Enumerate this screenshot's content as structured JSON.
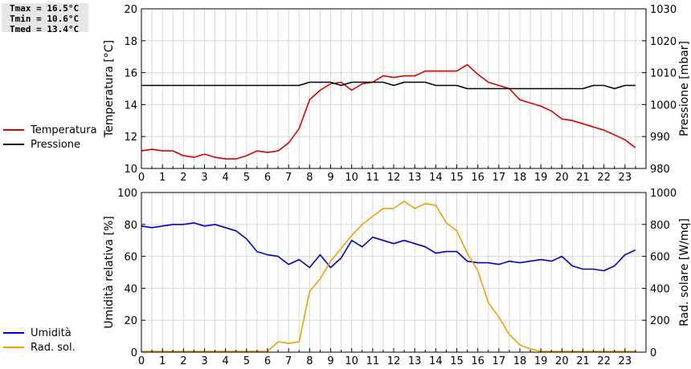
{
  "stats": {
    "tmax": "Tmax = 16.5°C",
    "tmin": "Tmin = 10.6°C",
    "tmed": "Tmed = 13.4°C"
  },
  "legend_top": [
    {
      "label": "Temperatura",
      "color": "#dd0000"
    },
    {
      "label": "Pressione",
      "color": "#000000"
    }
  ],
  "legend_bottom": [
    {
      "label": "Umidità",
      "color": "#0000cc"
    },
    {
      "label": "Rad. sol.",
      "color": "#f0a000"
    }
  ],
  "chart_data": [
    {
      "type": "line",
      "xlim": [
        0,
        24
      ],
      "xticks": [
        "0",
        "1",
        "2",
        "3",
        "4",
        "5",
        "6",
        "7",
        "8",
        "9",
        "10",
        "11",
        "12",
        "13",
        "14",
        "15",
        "16",
        "17",
        "18",
        "19",
        "20",
        "21",
        "22",
        "23"
      ],
      "ylabel": "Temperatura [°C]",
      "ylim": [
        10,
        20
      ],
      "yticks": [
        "10",
        "12",
        "14",
        "16",
        "18",
        "20"
      ],
      "y2label": "Pressione [mbar]",
      "y2lim": [
        980,
        1030
      ],
      "y2ticks": [
        "980",
        "990",
        "1000",
        "1010",
        "1020",
        "1030"
      ],
      "grid": true,
      "legend": "left",
      "series": [
        {
          "name": "Temperatura",
          "color": "#dd0000",
          "axis": "left",
          "x": [
            0,
            0.5,
            1,
            1.5,
            2,
            2.5,
            3,
            3.5,
            4,
            4.5,
            5,
            5.5,
            6,
            6.5,
            7,
            7.5,
            8,
            8.5,
            9,
            9.5,
            10,
            10.5,
            11,
            11.5,
            12,
            12.5,
            13,
            13.5,
            14,
            14.5,
            15,
            15.5,
            16,
            16.5,
            17,
            17.5,
            18,
            18.5,
            19,
            19.5,
            20,
            20.5,
            21,
            21.5,
            22,
            22.5,
            23,
            23.5
          ],
          "y": [
            11.1,
            11.2,
            11.1,
            11.1,
            10.8,
            10.7,
            10.9,
            10.7,
            10.6,
            10.6,
            10.8,
            11.1,
            11.0,
            11.1,
            11.6,
            12.5,
            14.3,
            14.9,
            15.3,
            15.4,
            14.9,
            15.3,
            15.4,
            15.8,
            15.7,
            15.8,
            15.8,
            16.1,
            16.1,
            16.1,
            16.1,
            16.5,
            15.9,
            15.4,
            15.2,
            15.0,
            14.3,
            14.1,
            13.9,
            13.6,
            13.1,
            13.0,
            12.8,
            12.6,
            12.4,
            12.1,
            11.8,
            11.3
          ]
        },
        {
          "name": "Pressione",
          "color": "#000000",
          "axis": "right",
          "x": [
            0,
            0.5,
            1,
            1.5,
            2,
            2.5,
            3,
            3.5,
            4,
            4.5,
            5,
            5.5,
            6,
            6.5,
            7,
            7.5,
            8,
            8.5,
            9,
            9.5,
            10,
            10.5,
            11,
            11.5,
            12,
            12.5,
            13,
            13.5,
            14,
            14.5,
            15,
            15.5,
            16,
            16.5,
            17,
            17.5,
            18,
            18.5,
            19,
            19.5,
            20,
            20.5,
            21,
            21.5,
            22,
            22.5,
            23,
            23.5
          ],
          "y": [
            1006,
            1006,
            1006,
            1006,
            1006,
            1006,
            1006,
            1006,
            1006,
            1006,
            1006,
            1006,
            1006,
            1006,
            1006,
            1006,
            1007,
            1007,
            1007,
            1006,
            1007,
            1007,
            1007,
            1007,
            1006,
            1007,
            1007,
            1007,
            1006,
            1006,
            1006,
            1005,
            1005,
            1005,
            1005,
            1005,
            1005,
            1005,
            1005,
            1005,
            1005,
            1005,
            1005,
            1006,
            1006,
            1005,
            1006,
            1006
          ]
        }
      ]
    },
    {
      "type": "line",
      "xlim": [
        0,
        24
      ],
      "xticks": [
        "0",
        "1",
        "2",
        "3",
        "4",
        "5",
        "6",
        "7",
        "8",
        "9",
        "10",
        "11",
        "12",
        "13",
        "14",
        "15",
        "16",
        "17",
        "18",
        "19",
        "20",
        "21",
        "22",
        "23"
      ],
      "ylabel": "Umidità relativa [%]",
      "ylim": [
        0,
        100
      ],
      "yticks": [
        "0",
        "20",
        "40",
        "60",
        "80",
        "100"
      ],
      "y2label": "Rad. solare [W/mq]",
      "y2lim": [
        0,
        1000
      ],
      "y2ticks": [
        "0",
        "200",
        "400",
        "600",
        "800",
        "1000"
      ],
      "grid": true,
      "legend": "left",
      "series": [
        {
          "name": "Umidità",
          "color": "#0000cc",
          "axis": "left",
          "x": [
            0,
            0.5,
            1,
            1.5,
            2,
            2.5,
            3,
            3.5,
            4,
            4.5,
            5,
            5.5,
            6,
            6.5,
            7,
            7.5,
            8,
            8.5,
            9,
            9.5,
            10,
            10.5,
            11,
            11.5,
            12,
            12.5,
            13,
            13.5,
            14,
            14.5,
            15,
            15.5,
            16,
            16.5,
            17,
            17.5,
            18,
            18.5,
            19,
            19.5,
            20,
            20.5,
            21,
            21.5,
            22,
            22.5,
            23,
            23.5
          ],
          "y": [
            79,
            78,
            79,
            80,
            80,
            81,
            79,
            80,
            78,
            76,
            71,
            63,
            61,
            60,
            55,
            58,
            53,
            61,
            53,
            59,
            70,
            66,
            72,
            70,
            68,
            70,
            68,
            66,
            62,
            63,
            63,
            57,
            56,
            56,
            55,
            57,
            56,
            57,
            58,
            57,
            60,
            54,
            52,
            52,
            51,
            54,
            61,
            64
          ]
        },
        {
          "name": "Rad. sol.",
          "color": "#f0a000",
          "axis": "right",
          "x": [
            0,
            0.5,
            1,
            1.5,
            2,
            2.5,
            3,
            3.5,
            4,
            4.5,
            5,
            5.5,
            6,
            6.5,
            7,
            7.5,
            8,
            8.5,
            9,
            9.5,
            10,
            10.5,
            11,
            11.5,
            12,
            12.5,
            13,
            13.5,
            14,
            14.5,
            15,
            15.5,
            16,
            16.5,
            17,
            17.5,
            18,
            18.5,
            19,
            19.5,
            20,
            20.5,
            21,
            21.5,
            22,
            22.5,
            23,
            23.5
          ],
          "y": [
            5,
            5,
            5,
            5,
            5,
            5,
            5,
            5,
            5,
            5,
            5,
            5,
            5,
            65,
            55,
            65,
            380,
            460,
            570,
            650,
            730,
            800,
            850,
            900,
            900,
            945,
            900,
            930,
            920,
            810,
            760,
            620,
            510,
            310,
            220,
            110,
            45,
            20,
            5,
            5,
            5,
            5,
            5,
            5,
            5,
            5,
            5,
            5
          ]
        }
      ]
    }
  ]
}
